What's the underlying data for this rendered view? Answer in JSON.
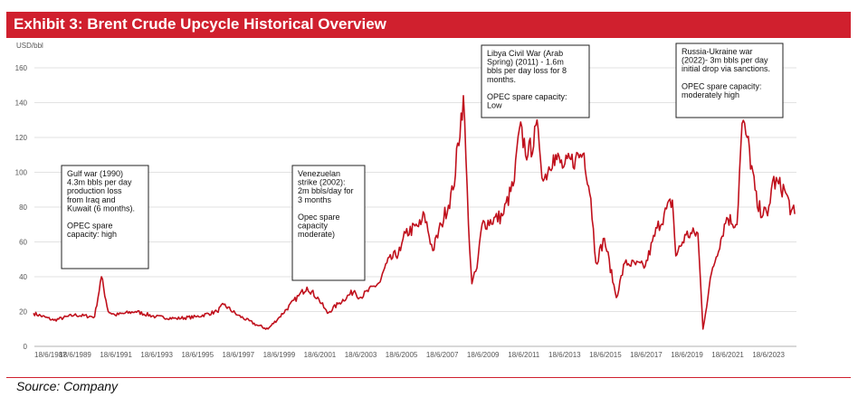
{
  "header": {
    "title": "Exhibit 3: Brent Crude Upcycle Historical Overview"
  },
  "footer": {
    "source": "Source: Company"
  },
  "colors": {
    "header_bg": "#d0202e",
    "line": "#c0101c",
    "grid": "#d9d9d9"
  },
  "chart_data": {
    "type": "line",
    "title": "",
    "xlabel": "",
    "ylabel": "USD/bbl",
    "ylim": [
      0,
      160
    ],
    "yticks": [
      0,
      20,
      40,
      60,
      80,
      100,
      120,
      140,
      160
    ],
    "grid": true,
    "x_tick_labels": [
      "18/6/1987",
      "18/6/1989",
      "18/6/1991",
      "18/6/1993",
      "18/6/1995",
      "18/6/1997",
      "18/6/1999",
      "18/6/2001",
      "18/6/2003",
      "18/6/2005",
      "18/6/2007",
      "18/6/2009",
      "18/6/2011",
      "18/6/2013",
      "18/6/2015",
      "18/6/2017",
      "18/6/2019",
      "18/6/2021",
      "18/6/2023"
    ],
    "x_range": [
      "1987-06-18",
      "2024-11-01"
    ],
    "series": [
      {
        "name": "",
        "x": [
          "1987-06",
          "1988-06",
          "1989-06",
          "1990-06",
          "1990-10",
          "1991-02",
          "1991-06",
          "1992-06",
          "1993-06",
          "1994-06",
          "1995-06",
          "1996-06",
          "1996-10",
          "1997-06",
          "1998-06",
          "1998-12",
          "1999-06",
          "2000-06",
          "2000-11",
          "2001-06",
          "2001-11",
          "2002-06",
          "2003-03",
          "2003-06",
          "2004-06",
          "2004-10",
          "2005-06",
          "2005-09",
          "2006-06",
          "2006-08",
          "2007-01",
          "2007-06",
          "2008-01",
          "2008-07",
          "2008-10",
          "2008-12",
          "2009-03",
          "2009-06",
          "2010-06",
          "2011-01",
          "2011-04",
          "2011-09",
          "2012-03",
          "2012-06",
          "2012-12",
          "2013-06",
          "2014-01",
          "2014-06",
          "2014-10",
          "2015-01",
          "2015-06",
          "2016-01",
          "2016-06",
          "2017-06",
          "2018-01",
          "2018-10",
          "2018-12",
          "2019-06",
          "2020-01",
          "2020-04",
          "2020-09",
          "2021-06",
          "2021-12",
          "2022-03",
          "2022-06",
          "2022-12",
          "2023-06",
          "2023-09",
          "2024-04",
          "2024-08",
          "2024-10"
        ],
        "values": [
          19,
          15,
          18,
          17,
          40,
          20,
          18,
          20,
          17,
          16,
          17,
          20,
          24,
          18,
          12,
          10,
          16,
          29,
          34,
          27,
          19,
          25,
          32,
          28,
          37,
          48,
          55,
          65,
          70,
          76,
          55,
          70,
          90,
          144,
          70,
          36,
          45,
          70,
          75,
          95,
          125,
          110,
          125,
          95,
          110,
          103,
          108,
          111,
          85,
          48,
          62,
          28,
          48,
          46,
          68,
          84,
          52,
          64,
          65,
          10,
          42,
          74,
          70,
          128,
          120,
          80,
          75,
          95,
          90,
          78,
          76
        ]
      }
    ],
    "annotations": [
      {
        "name": "gulf-war",
        "lines": [
          "Gulf war (1990)",
          "4.3m bbls per day",
          "production loss",
          "from Iraq and",
          "Kuwait (6 months).",
          "",
          "OPEC spare",
          "capacity: high"
        ]
      },
      {
        "name": "venezuelan-strike",
        "lines": [
          "Venezuelan",
          "strike (2002):",
          "2m bbls/day for",
          "3 months",
          "",
          "Opec spare",
          "capacity",
          "moderate)"
        ]
      },
      {
        "name": "libya-civil-war",
        "lines": [
          "Libya Civil War (Arab",
          "Spring) (2011) - 1.6m",
          "bbls per day loss for 8",
          "months.",
          "",
          "OPEC spare capacity:",
          "Low"
        ]
      },
      {
        "name": "russia-ukraine-war",
        "lines": [
          "Russia-Ukraine war",
          "(2022)- 3m bbls per day",
          "initial drop via sanctions.",
          "",
          "OPEC spare capacity:",
          "moderately high"
        ]
      }
    ]
  }
}
